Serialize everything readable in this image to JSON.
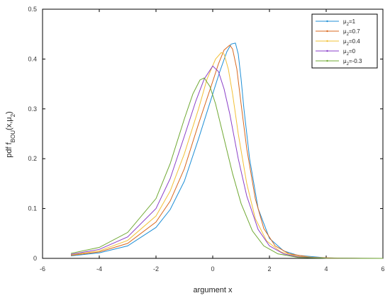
{
  "chart_data": {
    "type": "line",
    "xlabel": "argument x",
    "ylabel_parts": {
      "prefix": "pdf f",
      "subscript": "BOU",
      "suffix": "(x,μ",
      "suffix_sub": "2",
      "close": ")"
    },
    "xlim": [
      -6,
      6
    ],
    "ylim": [
      0,
      0.5
    ],
    "xticks": [
      "-6",
      "-4",
      "-2",
      "0",
      "2",
      "4",
      "6"
    ],
    "yticks": [
      "0",
      "0.1",
      "0.2",
      "0.3",
      "0.4",
      "0.5"
    ],
    "grid": false,
    "legend_position": "top-right",
    "x_range": [
      -5,
      6
    ],
    "series": [
      {
        "name": "μ2=1",
        "label_main": "μ",
        "label_sub": "2",
        "label_rest": "=1",
        "color": "#1f8fd6",
        "x": [
          -5,
          -4,
          -3,
          -2,
          -1.5,
          -1,
          -0.5,
          0,
          0.25,
          0.5,
          0.65,
          0.8,
          0.9,
          1.0,
          1.1,
          1.3,
          1.6,
          2,
          2.5,
          3,
          4,
          5,
          6
        ],
        "y": [
          0.005,
          0.011,
          0.025,
          0.062,
          0.098,
          0.155,
          0.24,
          0.33,
          0.375,
          0.415,
          0.43,
          0.432,
          0.41,
          0.36,
          0.3,
          0.2,
          0.1,
          0.04,
          0.015,
          0.006,
          0.001,
          0.0002,
          0.0
        ]
      },
      {
        "name": "μ2=0.7",
        "label_main": "μ",
        "label_sub": "2",
        "label_rest": "=0.7",
        "color": "#d9691f",
        "x": [
          -5,
          -4,
          -3,
          -2,
          -1.5,
          -1,
          -0.5,
          0,
          0.2,
          0.4,
          0.6,
          0.7,
          0.85,
          1.0,
          1.2,
          1.5,
          1.8,
          2.2,
          2.7,
          3.5,
          4.5,
          6
        ],
        "y": [
          0.006,
          0.013,
          0.03,
          0.073,
          0.115,
          0.18,
          0.27,
          0.355,
          0.39,
          0.418,
          0.428,
          0.42,
          0.38,
          0.31,
          0.22,
          0.12,
          0.06,
          0.025,
          0.009,
          0.002,
          0.0003,
          0.0
        ]
      },
      {
        "name": "μ2=0.4",
        "label_main": "μ",
        "label_sub": "2",
        "label_rest": "=0.4",
        "color": "#f2c037",
        "x": [
          -5,
          -4,
          -3,
          -2,
          -1.5,
          -1,
          -0.5,
          -0.2,
          0.1,
          0.3,
          0.4,
          0.55,
          0.7,
          0.9,
          1.2,
          1.5,
          1.9,
          2.4,
          3,
          4,
          5,
          6
        ],
        "y": [
          0.007,
          0.015,
          0.036,
          0.085,
          0.135,
          0.21,
          0.3,
          0.36,
          0.4,
          0.413,
          0.41,
          0.38,
          0.33,
          0.25,
          0.15,
          0.08,
          0.035,
          0.013,
          0.004,
          0.0006,
          0.0001,
          0.0
        ]
      },
      {
        "name": "μ2=0",
        "label_main": "μ",
        "label_sub": "2",
        "label_rest": "=0",
        "color": "#8a3ec8",
        "x": [
          -5,
          -4,
          -3,
          -2,
          -1.5,
          -1,
          -0.6,
          -0.3,
          0,
          0.2,
          0.4,
          0.6,
          0.9,
          1.2,
          1.6,
          2,
          2.5,
          3,
          4,
          5,
          6
        ],
        "y": [
          0.008,
          0.018,
          0.043,
          0.1,
          0.16,
          0.245,
          0.315,
          0.36,
          0.386,
          0.375,
          0.34,
          0.29,
          0.2,
          0.125,
          0.058,
          0.025,
          0.009,
          0.003,
          0.0004,
          0.0001,
          0.0
        ]
      },
      {
        "name": "μ2=-0.3",
        "label_main": "μ",
        "label_sub": "2",
        "label_rest": "=-0.3",
        "color": "#6fa832",
        "x": [
          -5,
          -4,
          -3,
          -2,
          -1.5,
          -1,
          -0.7,
          -0.45,
          -0.3,
          -0.1,
          0.1,
          0.4,
          0.7,
          1.0,
          1.4,
          1.8,
          2.3,
          3,
          4,
          5,
          6
        ],
        "y": [
          0.01,
          0.022,
          0.052,
          0.12,
          0.19,
          0.28,
          0.33,
          0.358,
          0.362,
          0.345,
          0.31,
          0.24,
          0.17,
          0.11,
          0.055,
          0.025,
          0.009,
          0.002,
          0.0003,
          0.0001,
          0.0
        ]
      }
    ]
  }
}
